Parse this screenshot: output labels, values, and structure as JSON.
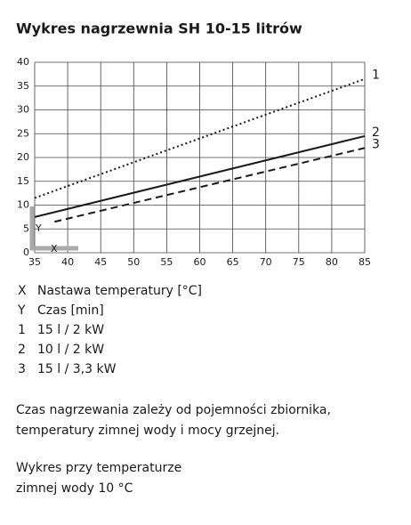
{
  "chart_data": {
    "type": "line",
    "title": "Wykres nagrzewnia SH 10-15 litrów",
    "x_label": "X",
    "y_label": "Y",
    "x_label_text": "Nastawa temperatury [°C]",
    "y_label_text": "Czas [min]",
    "xlim": [
      35,
      85
    ],
    "xticks": [
      35,
      40,
      45,
      50,
      55,
      60,
      65,
      70,
      75,
      80,
      85
    ],
    "ylim": [
      0,
      40
    ],
    "yticks": [
      0,
      5,
      10,
      15,
      20,
      25,
      30,
      35,
      40
    ],
    "grid": true,
    "series": [
      {
        "name": "1",
        "description": "15 l / 2 kW",
        "color": "#1a1a1a",
        "style": "dotted",
        "x": [
          35,
          85
        ],
        "values": [
          11.5,
          36.5
        ]
      },
      {
        "name": "2",
        "description": "10 l / 2 kW",
        "color": "#1a1a1a",
        "style": "solid",
        "x": [
          35,
          85
        ],
        "values": [
          7.5,
          24.5
        ]
      },
      {
        "name": "3",
        "description": "15 l / 3,3 kW",
        "color": "#1a1a1a",
        "style": "dashed",
        "x": [
          38,
          85
        ],
        "values": [
          6.5,
          22
        ]
      }
    ],
    "notes": [
      [
        "Czas nagrzewania zależy od pojemności zbiornika,",
        "temperatury zimnej wody i mocy grzejnej."
      ],
      [
        "Wykres przy temperaturze",
        "zimnej wody 10 °C"
      ]
    ]
  }
}
